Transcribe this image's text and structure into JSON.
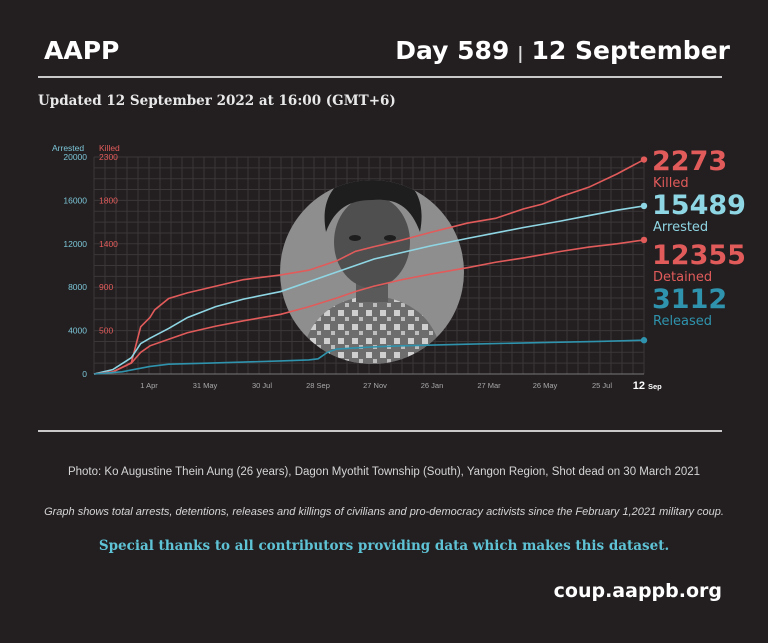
{
  "header": {
    "brand": "AAPP",
    "day_label": "Day 589",
    "separator": "|",
    "date_label": "12 September"
  },
  "updated_text": "Updated 12 September 2022 at 16:00 (GMT+6)",
  "chart_data": {
    "type": "line",
    "left_axis_title": "Arrested",
    "right_axis_title": "Killed",
    "left_ticks": [
      0,
      4000,
      8000,
      12000,
      16000,
      20000
    ],
    "right_ticks": [
      "500",
      "900",
      "1400",
      "1800",
      "2300"
    ],
    "x_tick_labels": [
      "1 Apr",
      "31 May",
      "30 Jul",
      "28 Sep",
      "27 Nov",
      "26 Jan",
      "27 Mar",
      "26 May",
      "25 Jul"
    ],
    "x_end_label_day": "12",
    "x_end_label_month": "Sep",
    "x_range_days": [
      0,
      589
    ],
    "ylim_arrested": [
      0,
      20000
    ],
    "grid": true,
    "series": [
      {
        "key": "killed",
        "name": "Killed",
        "final": "2273",
        "color": "#e25b5b",
        "points": [
          [
            0,
            0
          ],
          [
            20,
            20
          ],
          [
            40,
            120
          ],
          [
            50,
            500
          ],
          [
            55,
            550
          ],
          [
            60,
            600
          ],
          [
            65,
            680
          ],
          [
            80,
            800
          ],
          [
            100,
            860
          ],
          [
            130,
            930
          ],
          [
            160,
            1000
          ],
          [
            200,
            1050
          ],
          [
            230,
            1100
          ],
          [
            260,
            1200
          ],
          [
            280,
            1300
          ],
          [
            300,
            1350
          ],
          [
            330,
            1420
          ],
          [
            360,
            1500
          ],
          [
            400,
            1600
          ],
          [
            430,
            1650
          ],
          [
            460,
            1750
          ],
          [
            480,
            1800
          ],
          [
            500,
            1880
          ],
          [
            530,
            1980
          ],
          [
            560,
            2120
          ],
          [
            589,
            2273
          ]
        ]
      },
      {
        "key": "arrested",
        "name": "Arrested",
        "final": "15489",
        "color": "#8fd6e4",
        "points": [
          [
            0,
            0
          ],
          [
            20,
            400
          ],
          [
            40,
            1500
          ],
          [
            50,
            2800
          ],
          [
            60,
            3300
          ],
          [
            80,
            4200
          ],
          [
            100,
            5200
          ],
          [
            130,
            6200
          ],
          [
            160,
            6900
          ],
          [
            200,
            7600
          ],
          [
            230,
            8500
          ],
          [
            260,
            9400
          ],
          [
            280,
            10000
          ],
          [
            300,
            10600
          ],
          [
            330,
            11200
          ],
          [
            360,
            11800
          ],
          [
            400,
            12500
          ],
          [
            430,
            13000
          ],
          [
            460,
            13500
          ],
          [
            500,
            14100
          ],
          [
            530,
            14600
          ],
          [
            560,
            15100
          ],
          [
            589,
            15489
          ]
        ]
      },
      {
        "key": "detained",
        "name": "Detained",
        "final": "12355",
        "color": "#e25b5b",
        "points": [
          [
            0,
            0
          ],
          [
            20,
            200
          ],
          [
            40,
            1000
          ],
          [
            50,
            2000
          ],
          [
            60,
            2600
          ],
          [
            80,
            3200
          ],
          [
            100,
            3800
          ],
          [
            130,
            4400
          ],
          [
            160,
            4900
          ],
          [
            200,
            5500
          ],
          [
            230,
            6200
          ],
          [
            260,
            7000
          ],
          [
            280,
            7600
          ],
          [
            300,
            8100
          ],
          [
            330,
            8700
          ],
          [
            360,
            9200
          ],
          [
            400,
            9800
          ],
          [
            430,
            10300
          ],
          [
            460,
            10700
          ],
          [
            500,
            11300
          ],
          [
            530,
            11700
          ],
          [
            560,
            12000
          ],
          [
            589,
            12355
          ]
        ]
      },
      {
        "key": "released",
        "name": "Released",
        "final": "3112",
        "color": "#2f93ad",
        "points": [
          [
            0,
            0
          ],
          [
            30,
            200
          ],
          [
            60,
            700
          ],
          [
            80,
            900
          ],
          [
            120,
            1000
          ],
          [
            160,
            1100
          ],
          [
            200,
            1200
          ],
          [
            230,
            1300
          ],
          [
            240,
            1400
          ],
          [
            250,
            2000
          ],
          [
            260,
            2300
          ],
          [
            280,
            2400
          ],
          [
            300,
            2500
          ],
          [
            330,
            2600
          ],
          [
            400,
            2750
          ],
          [
            480,
            2900
          ],
          [
            540,
            3000
          ],
          [
            589,
            3112
          ]
        ]
      }
    ]
  },
  "captions": {
    "photo": "Photo: Ko Augustine Thein Aung (26 years), Dagon Myothit Township (South), Yangon Region, Shot dead on 30 March 2021",
    "graph": "Graph shows total arrests, detentions, releases and killings of civilians and pro-democracy activists since the February 1,2021 military coup.",
    "thanks": "Special thanks to all contributors providing data which makes this dataset."
  },
  "footer": {
    "site": "coup.aappb.org"
  }
}
